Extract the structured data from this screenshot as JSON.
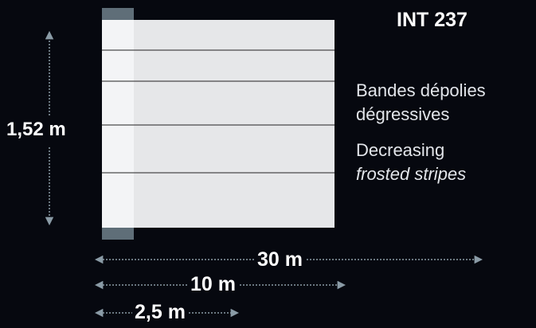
{
  "product_code": "INT 237",
  "description": {
    "fr_line1": "Bandes dépolies",
    "fr_line2": "dégressives",
    "en_line1": "Decreasing",
    "en_line2": "frosted stripes"
  },
  "dimensions": {
    "height": "1,52 m",
    "length": "30 m",
    "core_length": "10 m",
    "stripe_width": "2,5 m"
  },
  "film": {
    "stripe_count": 5
  },
  "colors": {
    "background": "#06080f",
    "film": "#e6e7e9",
    "core_band": "#f3f4f6",
    "core_caps": "#5f6e78",
    "stripe_line": "#222222",
    "arrow": "#8a9ba6"
  }
}
